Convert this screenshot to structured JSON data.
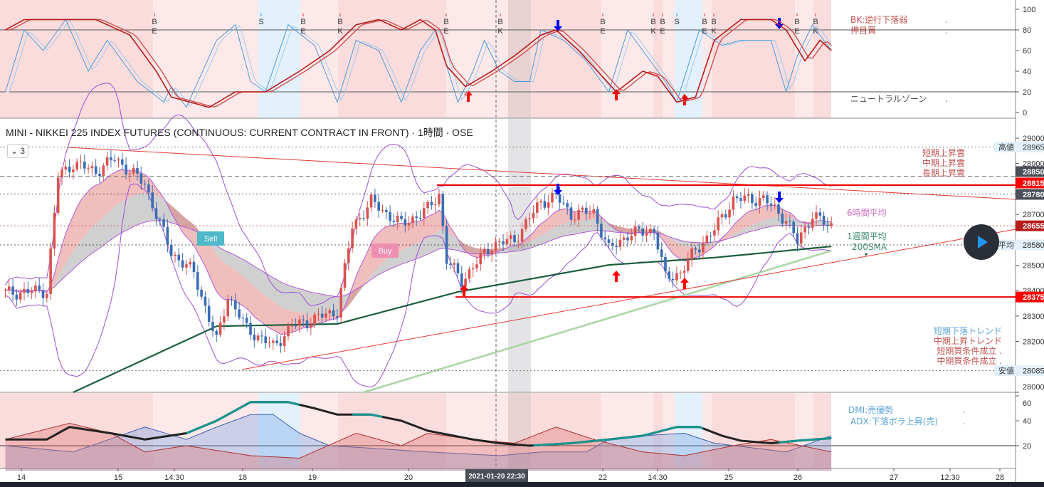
{
  "header": {
    "title": "MINI - NIKKEI 225 INDEX FUTURES (CONTINUOUS: CURRENT CONTRACT IN FRONT) · 1時間 · OSE",
    "collapse_count": "3"
  },
  "colors": {
    "up": "#d9534f",
    "down": "#3a6db5",
    "sma200": "#1b5e3c",
    "boll": "#9c4fd6",
    "trend": "#e53935",
    "stoch_fast": "#4a9ad8",
    "stoch_slow": "#b71c1c",
    "adx": "#222222",
    "adx_teal": "#17958f"
  },
  "stoch_panel": {
    "axis": [
      "100",
      "80",
      "60",
      "40",
      "20",
      "0"
    ],
    "signals": [
      {
        "top": "B",
        "bot": "E"
      },
      {
        "top": "S",
        "bot": ""
      },
      {
        "top": "B",
        "bot": "E"
      },
      {
        "top": "B",
        "bot": "K"
      },
      {
        "top": "B",
        "bot": "E"
      },
      {
        "top": "B",
        "bot": "K"
      },
      {
        "top": "B",
        "bot": "E"
      },
      {
        "top": "B",
        "bot": "K"
      },
      {
        "top": "B",
        "bot": "E"
      },
      {
        "top": "S",
        "bot": ""
      },
      {
        "top": "B",
        "bot": "E"
      },
      {
        "top": "B",
        "bot": "K"
      },
      {
        "top": "B",
        "bot": "E"
      },
      {
        "top": "B",
        "bot": "K"
      }
    ],
    "legend": [
      "BK:逆行下落弱",
      "押目買",
      "ニュートラルゾーン"
    ],
    "legend_dots": [
      ".",
      ".",
      "."
    ]
  },
  "main_panel": {
    "axis": [
      "29000",
      "28900",
      "28700",
      "28500",
      "28400",
      "28300",
      "28200",
      "28000"
    ],
    "price_tags": [
      {
        "label": "高値",
        "value": "28965"
      },
      {
        "label": "",
        "value": "28850"
      },
      {
        "label": "",
        "value": "28815"
      },
      {
        "label": "",
        "value": "28780"
      },
      {
        "label": "",
        "value": "28655"
      },
      {
        "label": "平均",
        "value": "28580"
      },
      {
        "label": "",
        "value": "28375"
      },
      {
        "label": "安値",
        "value": "28085"
      }
    ],
    "legend_cloud": [
      "短期上昇雲",
      "中期上昇雲",
      "長期上昇雲"
    ],
    "legend_ma6h": "6時間平均",
    "legend_ma1w": "1週間平均",
    "legend_sma": "200SMA",
    "legend_trend": [
      "短期下落トレンド",
      "中期上昇トレンド",
      "短期買条件成立 .",
      "中期買条件成立 ."
    ],
    "sell_label": "Sell",
    "buy_label": "Buy"
  },
  "dmi_panel": {
    "axis": [
      "60",
      "40",
      "20"
    ],
    "legend": [
      "DMI:売優勢",
      "ADX:下落ボラ上昇(売)"
    ],
    "legend_dots": [
      ".",
      "."
    ]
  },
  "time_axis": {
    "labels": [
      "14",
      "15",
      "14:30",
      "18",
      "19",
      "20",
      "22",
      "14:30",
      "25",
      "26",
      "27",
      "12:30",
      "28"
    ],
    "crosshair": "2021-01-20  22:30"
  },
  "chart_data": {
    "type": "candlestick",
    "title": "MINI - NIKKEI 225 INDEX FUTURES (CONTINUOUS: CURRENT CONTRACT IN FRONT) · 1時間 · OSE",
    "ylim": [
      28000,
      29050
    ],
    "close_waypoints": [
      [
        0,
        28390
      ],
      [
        11,
        28400
      ],
      [
        14,
        28850
      ],
      [
        18,
        28900
      ],
      [
        24,
        28870
      ],
      [
        29,
        28920
      ],
      [
        37,
        28820
      ],
      [
        40,
        28700
      ],
      [
        44,
        28550
      ],
      [
        50,
        28470
      ],
      [
        56,
        28200
      ],
      [
        59,
        28380
      ],
      [
        64,
        28250
      ],
      [
        71,
        28180
      ],
      [
        76,
        28260
      ],
      [
        88,
        28320
      ],
      [
        92,
        28650
      ],
      [
        97,
        28750
      ],
      [
        105,
        28660
      ],
      [
        112,
        28720
      ],
      [
        115,
        28780
      ],
      [
        117,
        28520
      ],
      [
        121,
        28440
      ],
      [
        129,
        28580
      ],
      [
        135,
        28600
      ],
      [
        142,
        28750
      ],
      [
        146,
        28770
      ],
      [
        150,
        28700
      ],
      [
        156,
        28710
      ],
      [
        160,
        28560
      ],
      [
        165,
        28620
      ],
      [
        172,
        28640
      ],
      [
        175,
        28450
      ],
      [
        179,
        28470
      ],
      [
        183,
        28560
      ],
      [
        188,
        28640
      ],
      [
        193,
        28760
      ],
      [
        201,
        28760
      ],
      [
        207,
        28680
      ],
      [
        210,
        28590
      ],
      [
        214,
        28700
      ],
      [
        218,
        28655
      ]
    ],
    "sma200": [
      [
        18,
        28000
      ],
      [
        56,
        28260
      ],
      [
        88,
        28269
      ],
      [
        120,
        28395
      ],
      [
        160,
        28501
      ],
      [
        188,
        28530
      ],
      [
        219,
        28574
      ]
    ],
    "week_avg_dotted": [
      [
        95,
        28000
      ],
      [
        219,
        28557
      ]
    ],
    "stoch_slow": [
      [
        0,
        80
      ],
      [
        5,
        90
      ],
      [
        14,
        90
      ],
      [
        24,
        90
      ],
      [
        33,
        75
      ],
      [
        40,
        40
      ],
      [
        44,
        15
      ],
      [
        54,
        5
      ],
      [
        61,
        20
      ],
      [
        69,
        20
      ],
      [
        78,
        40
      ],
      [
        86,
        60
      ],
      [
        93,
        85
      ],
      [
        99,
        90
      ],
      [
        105,
        80
      ],
      [
        110,
        90
      ],
      [
        114,
        80
      ],
      [
        117,
        45
      ],
      [
        122,
        25
      ],
      [
        129,
        40
      ],
      [
        135,
        55
      ],
      [
        142,
        75
      ],
      [
        146,
        80
      ],
      [
        152,
        60
      ],
      [
        157,
        40
      ],
      [
        162,
        20
      ],
      [
        169,
        40
      ],
      [
        173,
        35
      ],
      [
        178,
        10
      ],
      [
        183,
        15
      ],
      [
        188,
        70
      ],
      [
        195,
        90
      ],
      [
        203,
        90
      ],
      [
        207,
        80
      ],
      [
        212,
        50
      ],
      [
        216,
        70
      ],
      [
        219,
        60
      ]
    ],
    "stoch_fast": [
      [
        0,
        20
      ],
      [
        5,
        80
      ],
      [
        10,
        60
      ],
      [
        16,
        90
      ],
      [
        22,
        40
      ],
      [
        27,
        70
      ],
      [
        35,
        30
      ],
      [
        42,
        10
      ],
      [
        44,
        25
      ],
      [
        48,
        5
      ],
      [
        56,
        70
      ],
      [
        61,
        85
      ],
      [
        65,
        30
      ],
      [
        69,
        20
      ],
      [
        75,
        85
      ],
      [
        82,
        65
      ],
      [
        88,
        10
      ],
      [
        93,
        70
      ],
      [
        99,
        60
      ],
      [
        105,
        10
      ],
      [
        110,
        60
      ],
      [
        114,
        80
      ],
      [
        120,
        10
      ],
      [
        124,
        40
      ],
      [
        127,
        70
      ],
      [
        131,
        40
      ],
      [
        135,
        30
      ],
      [
        139,
        30
      ],
      [
        142,
        80
      ],
      [
        148,
        70
      ],
      [
        154,
        50
      ],
      [
        160,
        20
      ],
      [
        165,
        80
      ],
      [
        169,
        60
      ],
      [
        175,
        30
      ],
      [
        178,
        10
      ],
      [
        184,
        80
      ],
      [
        190,
        65
      ],
      [
        195,
        70
      ],
      [
        203,
        70
      ],
      [
        207,
        20
      ],
      [
        210,
        55
      ],
      [
        214,
        85
      ],
      [
        219,
        60
      ]
    ],
    "adx": [
      [
        0,
        25
      ],
      [
        11,
        25
      ],
      [
        17,
        35
      ],
      [
        28,
        30
      ],
      [
        37,
        25
      ],
      [
        48,
        30
      ],
      [
        56,
        40
      ],
      [
        65,
        55
      ],
      [
        75,
        55
      ],
      [
        82,
        50
      ],
      [
        88,
        45
      ],
      [
        97,
        45
      ],
      [
        105,
        40
      ],
      [
        112,
        32
      ],
      [
        124,
        25
      ],
      [
        131,
        22
      ],
      [
        139,
        20
      ],
      [
        150,
        22
      ],
      [
        160,
        25
      ],
      [
        169,
        28
      ],
      [
        178,
        35
      ],
      [
        184,
        35
      ],
      [
        190,
        28
      ],
      [
        195,
        24
      ],
      [
        203,
        22
      ],
      [
        210,
        24
      ],
      [
        219,
        26
      ]
    ],
    "di_plus": [
      [
        0,
        20
      ],
      [
        18,
        15
      ],
      [
        37,
        35
      ],
      [
        48,
        25
      ],
      [
        56,
        35
      ],
      [
        65,
        45
      ],
      [
        71,
        45
      ],
      [
        78,
        30
      ],
      [
        86,
        20
      ],
      [
        97,
        18
      ],
      [
        112,
        15
      ],
      [
        131,
        12
      ],
      [
        142,
        15
      ],
      [
        154,
        15
      ],
      [
        160,
        25
      ],
      [
        169,
        28
      ],
      [
        180,
        30
      ],
      [
        188,
        22
      ],
      [
        207,
        15
      ],
      [
        219,
        28
      ]
    ],
    "di_minus": [
      [
        0,
        25
      ],
      [
        17,
        38
      ],
      [
        28,
        30
      ],
      [
        37,
        15
      ],
      [
        48,
        20
      ],
      [
        65,
        12
      ],
      [
        78,
        10
      ],
      [
        93,
        30
      ],
      [
        105,
        20
      ],
      [
        112,
        30
      ],
      [
        124,
        25
      ],
      [
        135,
        22
      ],
      [
        146,
        35
      ],
      [
        156,
        25
      ],
      [
        169,
        15
      ],
      [
        180,
        12
      ],
      [
        193,
        20
      ],
      [
        203,
        25
      ],
      [
        219,
        15
      ]
    ],
    "horizontal_levels": [
      28965,
      28850,
      28815,
      28780,
      28655,
      28580,
      28375,
      28085
    ],
    "buy_arrows_bar": [
      122,
      162,
      180
    ],
    "sell_arrows_bar": [
      147,
      206
    ]
  }
}
